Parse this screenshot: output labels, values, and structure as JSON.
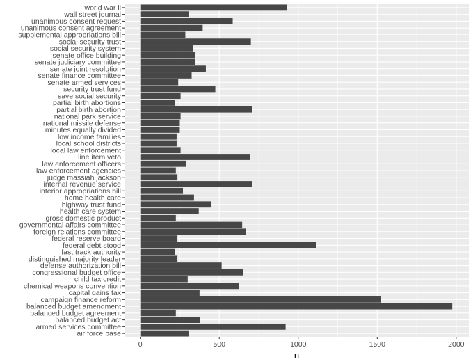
{
  "chart_data": {
    "type": "bar",
    "orientation": "horizontal",
    "title": "",
    "xlabel": "n",
    "ylabel": "",
    "xlim": [
      -100,
      2080
    ],
    "xticks": [
      0,
      500,
      1000,
      1500,
      2000
    ],
    "grid": true,
    "legend": "none",
    "categories": [
      "world war ii",
      "wall street journal",
      "unanimous consent request",
      "unanimous consent agreement",
      "supplemental appropriations bill",
      "social security trust",
      "social security system",
      "senate office building",
      "senate judiciary committee",
      "senate joint resolution",
      "senate finance committee",
      "senate armed services",
      "security trust fund",
      "save social security",
      "partial birth abortions",
      "partial birth abortion",
      "national park service",
      "national missile defense",
      "minutes equally divided",
      "low income families",
      "local school districts",
      "local law enforcement",
      "line item veto",
      "law enforcement officers",
      "law enforcement agencies",
      "judge massiah jackson",
      "internal revenue service",
      "interior appropriations bill",
      "home health care",
      "highway trust fund",
      "health care system",
      "gross domestic product",
      "governmental affairs committee",
      "foreign relations committee",
      "federal reserve board",
      "federal debt stood",
      "fast track authority",
      "distinguished majority leader",
      "defense authorization bill",
      "congressional budget office",
      "child tax credit",
      "chemical weapons convention",
      "capital gains tax",
      "campaign finance reform",
      "balanced budget amendment",
      "balanced budget agreement",
      "balanced budget act",
      "armed services committee",
      "air force base"
    ],
    "values": [
      930,
      305,
      585,
      395,
      285,
      700,
      335,
      345,
      345,
      415,
      325,
      240,
      475,
      255,
      220,
      710,
      255,
      250,
      250,
      230,
      230,
      255,
      695,
      290,
      225,
      235,
      710,
      270,
      340,
      450,
      370,
      225,
      645,
      670,
      235,
      1115,
      220,
      235,
      515,
      650,
      300,
      625,
      375,
      1525,
      1975,
      225,
      380,
      920,
      305
    ],
    "bar_color": "#474747",
    "panel_color": "#ebebeb",
    "grid_color": "#ffffff"
  }
}
